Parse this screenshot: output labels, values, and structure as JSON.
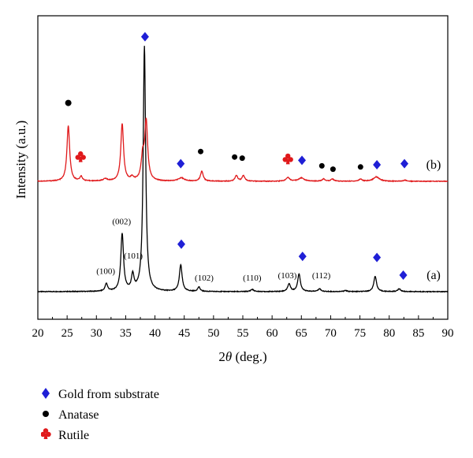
{
  "chart_data": {
    "type": "line",
    "xlabel_prefix": "2",
    "xlabel_symbol": "θ",
    "xlabel_suffix": " (deg.)",
    "ylabel": "Intensity (a.u.)",
    "xlim": [
      20,
      90
    ],
    "xticks": [
      20,
      25,
      30,
      35,
      40,
      45,
      50,
      55,
      60,
      65,
      70,
      75,
      80,
      85,
      90
    ],
    "grid": false,
    "legend_position": "bottom-left",
    "series": [
      {
        "name": "(a)",
        "color": "#000000",
        "baseline": 0,
        "peaks": [
          {
            "x": 31.7,
            "h": 0.07,
            "w": 0.25
          },
          {
            "x": 34.4,
            "h": 0.52,
            "w": 0.28
          },
          {
            "x": 36.2,
            "h": 0.14,
            "w": 0.25
          },
          {
            "x": 38.2,
            "h": 2.22,
            "w": 0.25
          },
          {
            "x": 44.4,
            "h": 0.24,
            "w": 0.28
          },
          {
            "x": 47.5,
            "h": 0.04,
            "w": 0.25
          },
          {
            "x": 56.6,
            "h": 0.02,
            "w": 0.3
          },
          {
            "x": 62.9,
            "h": 0.07,
            "w": 0.28
          },
          {
            "x": 64.6,
            "h": 0.16,
            "w": 0.28
          },
          {
            "x": 68.1,
            "h": 0.025,
            "w": 0.3
          },
          {
            "x": 72.5,
            "h": 0.01,
            "w": 0.3
          },
          {
            "x": 77.6,
            "h": 0.14,
            "w": 0.28
          },
          {
            "x": 81.7,
            "h": 0.025,
            "w": 0.3
          }
        ]
      },
      {
        "name": "(b)",
        "color": "#e0191b",
        "baseline": 1.0,
        "peaks": [
          {
            "x": 25.2,
            "h": 0.5,
            "w": 0.28
          },
          {
            "x": 27.4,
            "h": 0.04,
            "w": 0.25
          },
          {
            "x": 31.5,
            "h": 0.02,
            "w": 0.4
          },
          {
            "x": 34.4,
            "h": 0.52,
            "w": 0.28
          },
          {
            "x": 36.1,
            "h": 0.03,
            "w": 0.3
          },
          {
            "x": 37.9,
            "h": 0.2,
            "w": 0.3
          },
          {
            "x": 38.5,
            "h": 0.53,
            "w": 0.3
          },
          {
            "x": 44.5,
            "h": 0.03,
            "w": 0.6
          },
          {
            "x": 48.0,
            "h": 0.09,
            "w": 0.28
          },
          {
            "x": 53.9,
            "h": 0.05,
            "w": 0.28
          },
          {
            "x": 55.1,
            "h": 0.05,
            "w": 0.28
          },
          {
            "x": 62.7,
            "h": 0.035,
            "w": 0.35
          },
          {
            "x": 65.0,
            "h": 0.03,
            "w": 0.6
          },
          {
            "x": 68.8,
            "h": 0.02,
            "w": 0.3
          },
          {
            "x": 70.3,
            "h": 0.02,
            "w": 0.3
          },
          {
            "x": 75.1,
            "h": 0.02,
            "w": 0.3
          },
          {
            "x": 77.8,
            "h": 0.04,
            "w": 0.6
          },
          {
            "x": 82.7,
            "h": 0.01,
            "w": 0.3
          }
        ]
      }
    ],
    "trace_labels": [
      {
        "text": "(a)",
        "series": "(a)"
      },
      {
        "text": "(b)",
        "series": "(b)"
      }
    ],
    "peak_labels": [
      {
        "text": "(100)",
        "x": 31.6,
        "y": 0.16
      },
      {
        "text": "(002)",
        "x": 34.3,
        "y": 0.61
      },
      {
        "text": "(101)",
        "x": 36.3,
        "y": 0.3
      },
      {
        "text": "(102)",
        "x": 48.4,
        "y": 0.1
      },
      {
        "text": "(110)",
        "x": 56.6,
        "y": 0.1
      },
      {
        "text": "(103)",
        "x": 62.6,
        "y": 0.12
      },
      {
        "text": "(112)",
        "x": 68.4,
        "y": 0.12
      }
    ],
    "markers": [
      {
        "type": "gold",
        "x": 38.3,
        "y": 2.31
      },
      {
        "type": "gold",
        "x": 44.4,
        "y": 1.16
      },
      {
        "type": "gold",
        "x": 65.1,
        "y": 1.19
      },
      {
        "type": "gold",
        "x": 77.9,
        "y": 1.15
      },
      {
        "type": "gold",
        "x": 82.6,
        "y": 1.16
      },
      {
        "type": "gold",
        "x": 44.5,
        "y": 0.43
      },
      {
        "type": "gold",
        "x": 65.2,
        "y": 0.32
      },
      {
        "type": "gold",
        "x": 77.9,
        "y": 0.31
      },
      {
        "type": "gold",
        "x": 82.4,
        "y": 0.15
      },
      {
        "type": "anatase",
        "x": 25.2,
        "y": 1.71
      },
      {
        "type": "anatase",
        "x": 47.8,
        "y": 1.27
      },
      {
        "type": "anatase",
        "x": 53.6,
        "y": 1.22
      },
      {
        "type": "anatase",
        "x": 54.9,
        "y": 1.21
      },
      {
        "type": "anatase",
        "x": 68.5,
        "y": 1.14
      },
      {
        "type": "anatase",
        "x": 70.4,
        "y": 1.11
      },
      {
        "type": "anatase",
        "x": 75.1,
        "y": 1.13
      },
      {
        "type": "rutile",
        "x": 27.3,
        "y": 1.21
      },
      {
        "type": "rutile",
        "x": 62.7,
        "y": 1.19
      }
    ]
  },
  "legend": {
    "items": [
      {
        "label": "Gold from substrate",
        "type": "gold"
      },
      {
        "label": "Anatase",
        "type": "anatase"
      },
      {
        "label": "Rutile",
        "type": "rutile"
      }
    ]
  },
  "colors": {
    "gold": "#1f1fd6",
    "anatase": "#000000",
    "rutile": "#e0191b"
  }
}
